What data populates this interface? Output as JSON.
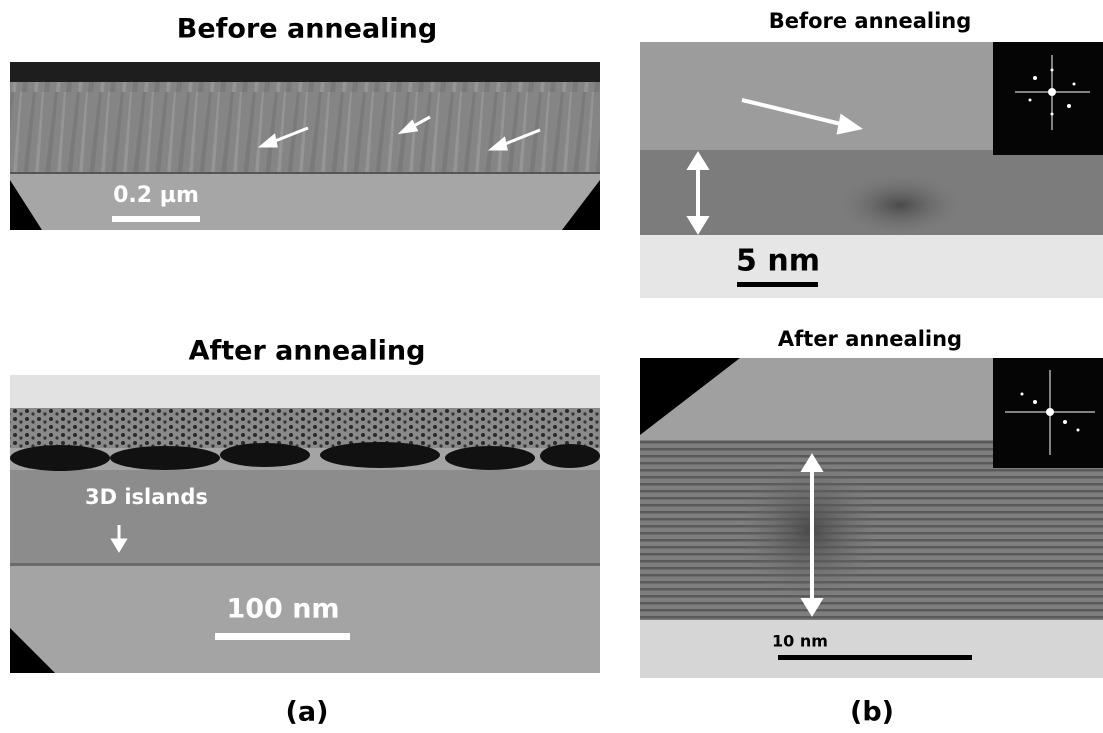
{
  "panels": [
    {
      "label": "(a)",
      "images": [
        {
          "title": "Before annealing",
          "annotations": [
            "0.2 µm"
          ]
        },
        {
          "title": "After annealing",
          "annotations": [
            "3D islands",
            "100 nm"
          ]
        }
      ]
    },
    {
      "label": "(b)",
      "images": [
        {
          "title": "Before annealing",
          "annotations": [
            "5 nm"
          ]
        },
        {
          "title": "After annealing",
          "annotations": [
            "10 nm"
          ]
        }
      ]
    }
  ]
}
